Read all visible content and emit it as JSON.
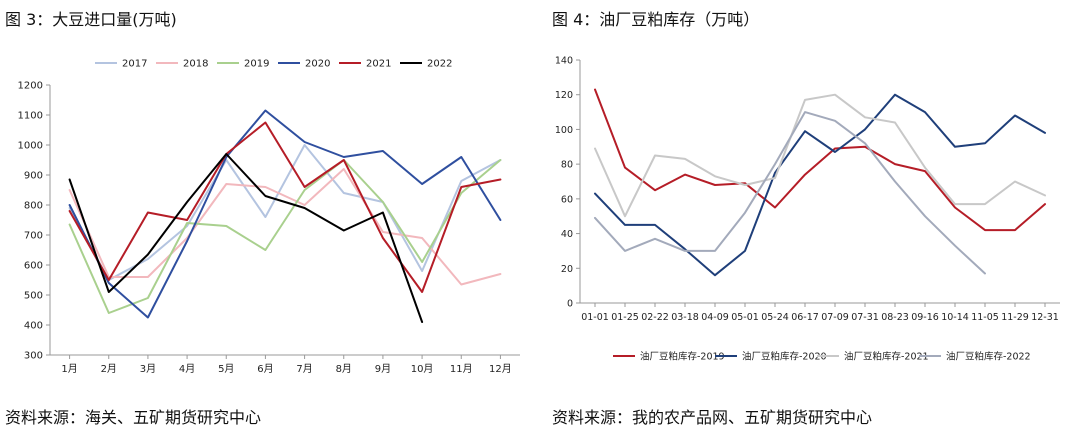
{
  "left_figure": {
    "title": "图 3：大豆进口量(万吨)",
    "source": "资料来源：海关、五矿期货研究中心"
  },
  "right_figure": {
    "title": "图 4：油厂豆粕库存（万吨）",
    "source": "资料来源：我的农产品网、五矿期货研究中心"
  },
  "chart_data": [
    {
      "type": "line",
      "title": "图 3：大豆进口量(万吨)",
      "xlabel": "",
      "ylabel": "",
      "categories": [
        "1月",
        "2月",
        "3月",
        "4月",
        "5月",
        "6月",
        "7月",
        "8月",
        "9月",
        "10月",
        "11月",
        "12月"
      ],
      "ylim": [
        300,
        1200
      ],
      "yticks": [
        300,
        400,
        500,
        600,
        700,
        800,
        900,
        1000,
        1100,
        1200
      ],
      "grid": false,
      "legend": "top",
      "series": [
        {
          "name": "2017",
          "color": "#b4c4e0",
          "values": [
            790,
            550,
            620,
            730,
            950,
            760,
            1000,
            840,
            810,
            580,
            880,
            950
          ]
        },
        {
          "name": "2018",
          "color": "#f2b8bd",
          "values": [
            850,
            560,
            560,
            690,
            870,
            860,
            800,
            920,
            710,
            690,
            535,
            570
          ]
        },
        {
          "name": "2019",
          "color": "#a9d08e",
          "values": [
            735,
            440,
            490,
            740,
            730,
            650,
            850,
            950,
            810,
            610,
            840,
            950
          ]
        },
        {
          "name": "2020",
          "color": "#2f4f9f",
          "values": [
            800,
            540,
            425,
            680,
            960,
            1115,
            1010,
            960,
            980,
            870,
            960,
            750
          ]
        },
        {
          "name": "2021",
          "color": "#b51d27",
          "values": [
            780,
            550,
            775,
            750,
            970,
            1075,
            860,
            950,
            690,
            510,
            860,
            885
          ]
        },
        {
          "name": "2022",
          "color": "#000000",
          "values": [
            885,
            510,
            635,
            810,
            970,
            830,
            790,
            715,
            775,
            410,
            null,
            null
          ]
        }
      ]
    },
    {
      "type": "line",
      "title": "图 4：油厂豆粕库存（万吨）",
      "xlabel": "",
      "ylabel": "",
      "categories": [
        "01-01",
        "01-25",
        "02-22",
        "03-18",
        "04-09",
        "05-01",
        "05-24",
        "06-17",
        "07-09",
        "07-31",
        "08-23",
        "09-16",
        "10-14",
        "11-05",
        "11-29",
        "12-31"
      ],
      "ylim": [
        0,
        140
      ],
      "yticks": [
        0,
        20,
        40,
        60,
        80,
        100,
        120,
        140
      ],
      "grid": false,
      "legend": "bottom",
      "series": [
        {
          "name": "油厂豆粕库存-2019",
          "color": "#b51d27",
          "values": [
            123,
            78,
            65,
            74,
            68,
            69,
            55,
            74,
            89,
            90,
            80,
            76,
            55,
            42,
            42,
            57
          ]
        },
        {
          "name": "油厂豆粕库存-2020",
          "color": "#1f3f7a",
          "values": [
            63,
            45,
            45,
            31,
            16,
            30,
            75,
            99,
            87,
            100,
            120,
            110,
            90,
            92,
            108,
            98
          ]
        },
        {
          "name": "油厂豆粕库存-2021",
          "color": "#c8c8c8",
          "values": [
            89,
            50,
            85,
            83,
            73,
            68,
            72,
            117,
            120,
            107,
            104,
            78,
            57,
            57,
            70,
            62
          ]
        },
        {
          "name": "油厂豆粕库存-2022",
          "color": "#a3aabb",
          "values": [
            49,
            30,
            37,
            30,
            30,
            52,
            80,
            110,
            105,
            92,
            70,
            50,
            33,
            17,
            null,
            null
          ]
        }
      ]
    }
  ]
}
